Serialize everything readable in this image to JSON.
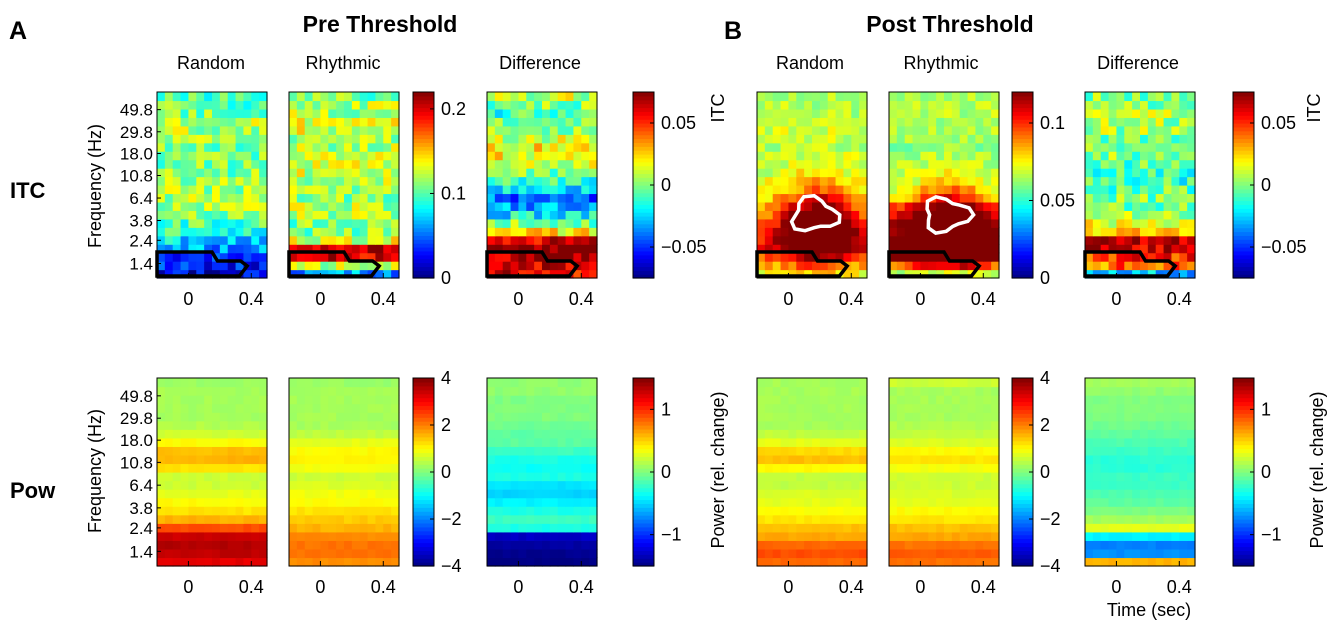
{
  "panel_a": {
    "letter": "A",
    "title": "Pre Threshold"
  },
  "panel_b": {
    "letter": "B",
    "title": "Post Threshold"
  },
  "rows": {
    "itc": "ITC",
    "pow": "Pow"
  },
  "columns": {
    "random": "Random",
    "rhythmic": "Rhythmic",
    "difference": "Difference"
  },
  "labels": {
    "frequency": "Frequency (Hz)",
    "itc_unit": "ITC",
    "power_unit": "Power (rel. change)",
    "time": "Time (sec)"
  },
  "chart_data": {
    "type": "heatmap",
    "x": {
      "ticks": [
        0,
        0.4
      ],
      "tick_labels": [
        "0",
        "0.4"
      ],
      "range": [
        -0.2,
        0.5
      ]
    },
    "y": {
      "scale": "log",
      "ticks": [
        1.4,
        2.4,
        3.8,
        6.4,
        10.8,
        18.0,
        29.8,
        49.8
      ],
      "tick_labels": [
        "1.4",
        "2.4",
        "3.8",
        "6.4",
        "10.8",
        "18.0",
        "29.8",
        "49.8"
      ]
    },
    "colormap": "jet",
    "colorbars": {
      "pre_itc": {
        "range": [
          0,
          0.22
        ],
        "ticks": [
          0,
          0.1,
          0.2
        ],
        "tick_labels": [
          "0",
          "0.1",
          "0.2"
        ]
      },
      "pre_itc_diff": {
        "range": [
          -0.075,
          0.075
        ],
        "ticks": [
          -0.05,
          0,
          0.05
        ],
        "tick_labels": [
          "−0.05",
          "0",
          "0.05"
        ]
      },
      "pre_pow": {
        "range": [
          -4,
          4
        ],
        "ticks": [
          -4,
          -2,
          0,
          2,
          4
        ],
        "tick_labels": [
          "−4",
          "−2",
          "0",
          "2",
          "4"
        ]
      },
      "pre_pow_diff": {
        "range": [
          -1.5,
          1.5
        ],
        "ticks": [
          -1,
          0,
          1
        ],
        "tick_labels": [
          "−1",
          "0",
          "1"
        ]
      },
      "post_itc": {
        "range": [
          0,
          0.12
        ],
        "ticks": [
          0,
          0.05,
          0.1
        ],
        "tick_labels": [
          "0",
          "0.05",
          "0.1"
        ]
      },
      "post_itc_diff": {
        "range": [
          -0.075,
          0.075
        ],
        "ticks": [
          -0.05,
          0,
          0.05
        ],
        "tick_labels": [
          "−0.05",
          "0",
          "0.05"
        ]
      },
      "post_pow": {
        "range": [
          -4,
          4
        ],
        "ticks": [
          -4,
          -2,
          0,
          2,
          4
        ],
        "tick_labels": [
          "−4",
          "−2",
          "0",
          "2",
          "4"
        ]
      },
      "post_pow_diff": {
        "range": [
          -1.5,
          1.5
        ],
        "ticks": [
          -1,
          0,
          1
        ],
        "tick_labels": [
          "−1",
          "0",
          "1"
        ]
      }
    },
    "panels": [
      {
        "id": "pre_itc_random",
        "bands": [
          0.02,
          0.03,
          0.045,
          0.06,
          0.075,
          0.09,
          0.1,
          0.11,
          0.12,
          0.12,
          0.12,
          0.115,
          0.11,
          0.11,
          0.11,
          0.11,
          0.115,
          0.12,
          0.12,
          0.11,
          0.105,
          0.1
        ],
        "mode": "blotchy",
        "contour": "black"
      },
      {
        "id": "pre_itc_rhythmic",
        "bands": [
          0.06,
          0.12,
          0.2,
          0.21,
          0.13,
          0.11,
          0.11,
          0.12,
          0.12,
          0.115,
          0.12,
          0.12,
          0.125,
          0.13,
          0.13,
          0.12,
          0.12,
          0.13,
          0.13,
          0.12,
          0.12,
          0.11
        ],
        "mode": "blotchy",
        "contour": "black"
      },
      {
        "id": "pre_itc_difference",
        "bands": [
          0.06,
          0.065,
          0.07,
          0.075,
          0.06,
          0.02,
          0.0,
          -0.02,
          -0.03,
          -0.04,
          -0.02,
          -0.01,
          0.0,
          0.01,
          0.02,
          0.02,
          0.01,
          0.0,
          0.0,
          -0.01,
          0.0,
          0.01
        ],
        "mode": "blotchy",
        "contour": "black"
      },
      {
        "id": "pre_pow_random",
        "bands": [
          3.2,
          3.5,
          3.6,
          3.4,
          2.4,
          1.6,
          1.2,
          1.0,
          0.8,
          0.6,
          0.6,
          1.2,
          1.6,
          1.5,
          1.0,
          0.6,
          0.4,
          0.3,
          0.3,
          0.3,
          0.3,
          0.2
        ],
        "mode": "smooth"
      },
      {
        "id": "pre_pow_rhythmic",
        "bands": [
          1.9,
          2.1,
          2.1,
          1.9,
          1.6,
          1.4,
          1.2,
          1.0,
          0.9,
          0.7,
          0.6,
          0.9,
          1.1,
          1.0,
          0.8,
          0.5,
          0.3,
          0.3,
          0.3,
          0.3,
          0.3,
          0.2
        ],
        "mode": "smooth"
      },
      {
        "id": "pre_pow_difference",
        "bands": [
          -1.5,
          -1.45,
          -1.4,
          -1.3,
          -0.3,
          -0.2,
          -0.3,
          -0.4,
          -0.5,
          -0.45,
          -0.3,
          -0.35,
          -0.3,
          -0.2,
          -0.1,
          -0.1,
          -0.05,
          0,
          0,
          0,
          0.05,
          0.05
        ],
        "mode": "smooth"
      },
      {
        "id": "post_itc_random",
        "bands": [
          0.07,
          0.08,
          0.09,
          0.1,
          0.1,
          0.1,
          0.09,
          0.085,
          0.08,
          0.075,
          0.07,
          0.07,
          0.068,
          0.068,
          0.068,
          0.066,
          0.068,
          0.07,
          0.07,
          0.066,
          0.066,
          0.066
        ],
        "mode": "blob",
        "contour": "both"
      },
      {
        "id": "post_itc_rhythmic",
        "bands": [
          0.06,
          0.09,
          0.12,
          0.12,
          0.12,
          0.115,
          0.11,
          0.1,
          0.09,
          0.075,
          0.07,
          0.066,
          0.066,
          0.064,
          0.064,
          0.062,
          0.064,
          0.066,
          0.066,
          0.066,
          0.066,
          0.066
        ],
        "mode": "blob",
        "contour": "both"
      },
      {
        "id": "post_itc_difference",
        "bands": [
          -0.03,
          0.04,
          0.05,
          0.065,
          0.07,
          0.03,
          0.015,
          0.005,
          0.0,
          0.0,
          -0.005,
          -0.01,
          -0.01,
          -0.005,
          0.0,
          0.0,
          0.0,
          0.005,
          0.005,
          0.01,
          0.0,
          0.0
        ],
        "mode": "blotchy",
        "contour": "black"
      },
      {
        "id": "post_pow_random",
        "bands": [
          2.2,
          2.4,
          2.2,
          1.7,
          1.5,
          1.2,
          1.0,
          0.8,
          0.7,
          0.5,
          0.5,
          1.0,
          1.5,
          1.3,
          0.8,
          0.5,
          0.3,
          0.3,
          0.3,
          0.3,
          0.3,
          0.3
        ],
        "mode": "smooth"
      },
      {
        "id": "post_pow_rhythmic",
        "bands": [
          2.1,
          2.3,
          2.1,
          1.7,
          1.5,
          1.2,
          1.0,
          0.8,
          0.7,
          0.6,
          0.6,
          0.9,
          1.2,
          1.0,
          0.7,
          0.5,
          0.4,
          0.3,
          0.3,
          0.3,
          0.3,
          0.6
        ],
        "mode": "smooth"
      },
      {
        "id": "post_pow_difference",
        "bands": [
          0.6,
          -0.7,
          -0.75,
          -0.4,
          0.3,
          0.1,
          0.0,
          -0.1,
          -0.15,
          -0.2,
          -0.2,
          -0.25,
          -0.25,
          -0.2,
          -0.15,
          -0.1,
          -0.05,
          0,
          0,
          0,
          0.05,
          0.1
        ],
        "mode": "smooth"
      }
    ]
  }
}
